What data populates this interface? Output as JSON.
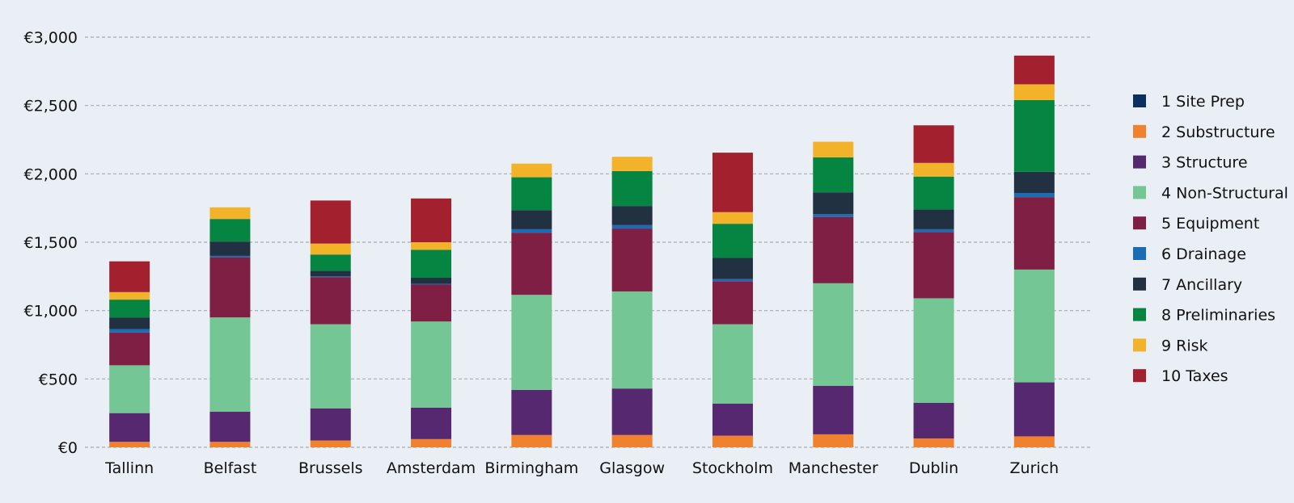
{
  "chart_data": {
    "type": "bar",
    "stacked": true,
    "title": "",
    "xlabel": "",
    "ylabel": "",
    "ylim": [
      0,
      3000
    ],
    "yticks": [
      {
        "value": 0,
        "label": "€0"
      },
      {
        "value": 500,
        "label": "€500"
      },
      {
        "value": 1000,
        "label": "€1,000"
      },
      {
        "value": 1500,
        "label": "€1,500"
      },
      {
        "value": 2000,
        "label": "€2,000"
      },
      {
        "value": 2500,
        "label": "€2,500"
      },
      {
        "value": 3000,
        "label": "€3,000"
      }
    ],
    "grid": true,
    "legend_position": "right",
    "categories": [
      "Tallinn",
      "Belfast",
      "Brussels",
      "Amsterdam",
      "Birmingham",
      "Glasgow",
      "Stockholm",
      "Manchester",
      "Dublin",
      "Zurich"
    ],
    "series": [
      {
        "name": "1 Site Prep",
        "color": "#0b2f5e",
        "values": [
          0,
          0,
          0,
          0,
          0,
          0,
          0,
          0,
          0,
          0
        ]
      },
      {
        "name": "2 Substructure",
        "color": "#f0822f",
        "values": [
          40,
          40,
          50,
          60,
          90,
          90,
          85,
          95,
          65,
          80
        ]
      },
      {
        "name": "3 Structure",
        "color": "#55286f",
        "values": [
          210,
          220,
          235,
          230,
          330,
          340,
          235,
          355,
          260,
          395
        ]
      },
      {
        "name": "4 Non-Structural",
        "color": "#74c794",
        "values": [
          350,
          690,
          615,
          630,
          695,
          710,
          580,
          750,
          765,
          825
        ]
      },
      {
        "name": "5 Equipment",
        "color": "#7e1f43",
        "values": [
          240,
          440,
          345,
          270,
          455,
          460,
          315,
          485,
          485,
          530
        ]
      },
      {
        "name": "6 Drainage",
        "color": "#1a6cb4",
        "values": [
          25,
          10,
          5,
          5,
          25,
          25,
          15,
          20,
          20,
          30
        ]
      },
      {
        "name": "7 Ancillary",
        "color": "#223142",
        "values": [
          85,
          105,
          40,
          45,
          140,
          140,
          155,
          160,
          145,
          155
        ]
      },
      {
        "name": "8 Preliminaries",
        "color": "#058442",
        "values": [
          130,
          165,
          120,
          205,
          240,
          255,
          250,
          255,
          240,
          525
        ]
      },
      {
        "name": "9 Risk",
        "color": "#f2b32b",
        "values": [
          55,
          85,
          80,
          55,
          100,
          105,
          85,
          115,
          100,
          115
        ]
      },
      {
        "name": "10 Taxes",
        "color": "#a3202f",
        "values": [
          225,
          0,
          315,
          320,
          0,
          0,
          435,
          0,
          275,
          210
        ]
      }
    ]
  }
}
